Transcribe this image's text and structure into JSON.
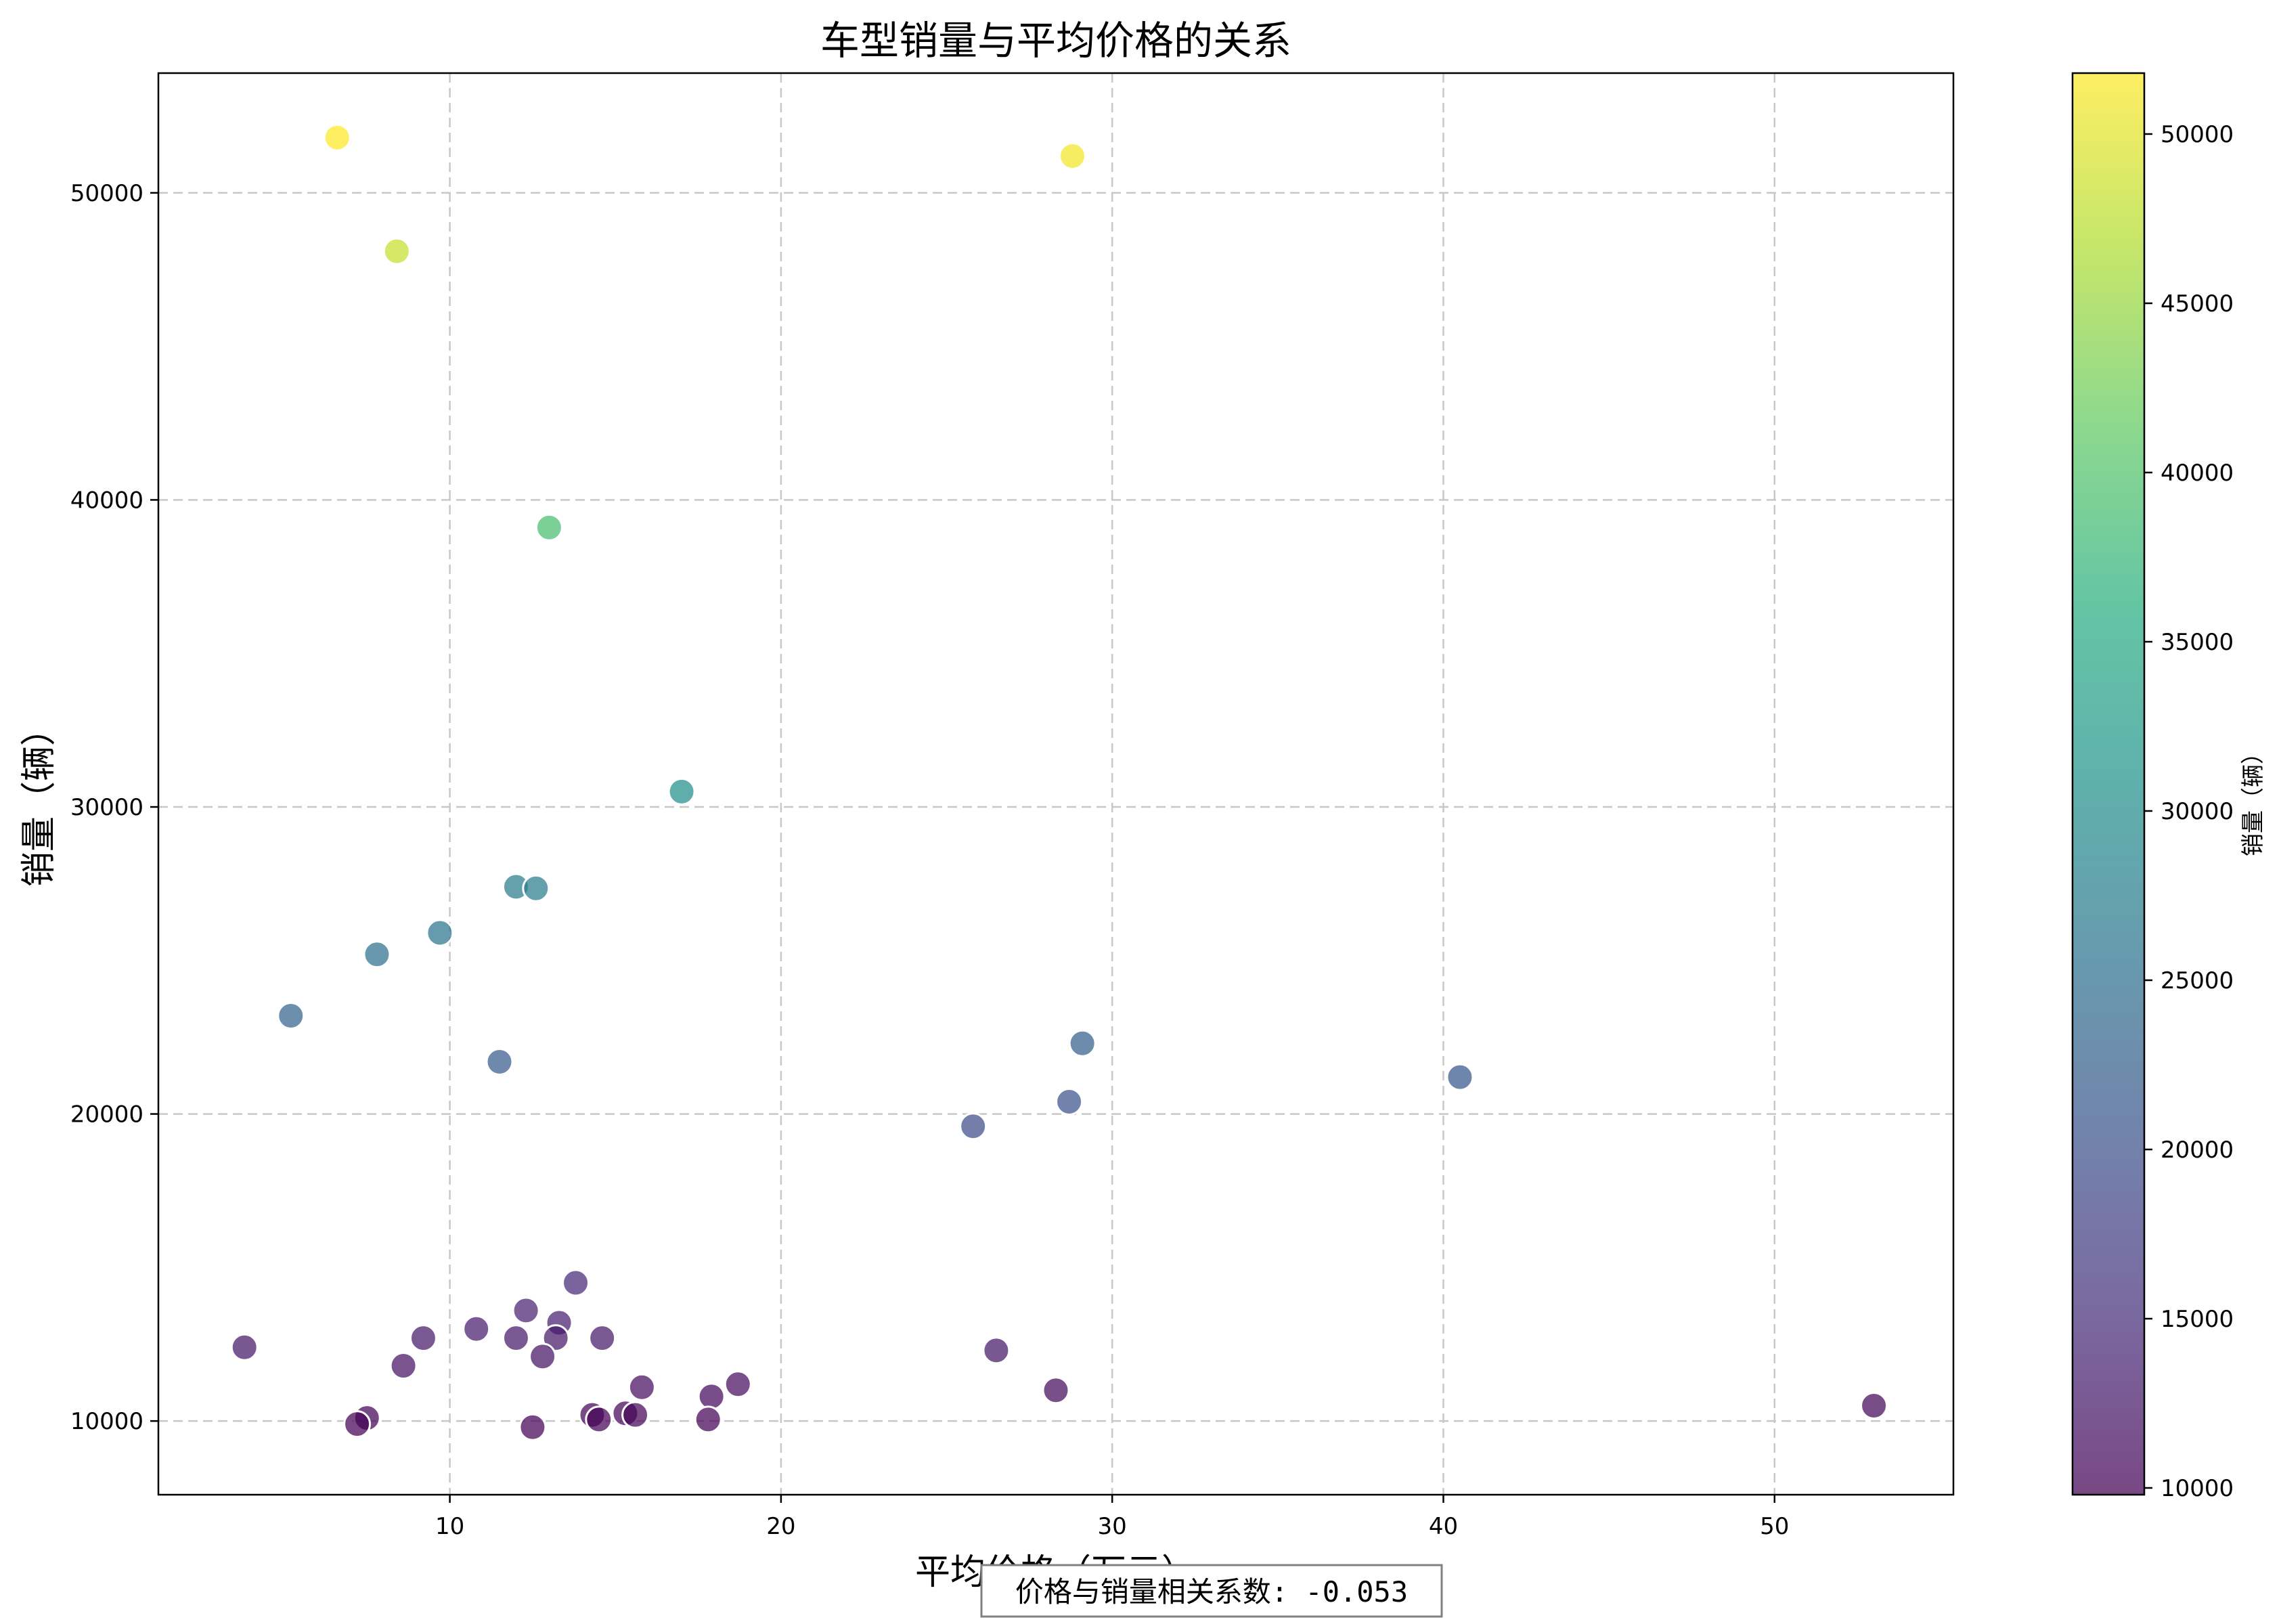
{
  "chart_data": {
    "type": "scatter",
    "title": "车型销量与平均价格的关系",
    "xlabel": "平均价格（万元）",
    "ylabel": "销量（辆）",
    "xlim": [
      1.2,
      55.4
    ],
    "ylim": [
      7600,
      53900
    ],
    "xticks": [
      10,
      20,
      30,
      40,
      50
    ],
    "yticks": [
      10000,
      20000,
      30000,
      40000,
      50000
    ],
    "grid": true,
    "colormap": "viridis",
    "colorbar": {
      "label": "销量（辆）",
      "range": [
        9800,
        51800
      ],
      "ticks": [
        10000,
        15000,
        20000,
        25000,
        30000,
        35000,
        40000,
        45000,
        50000
      ]
    },
    "annotation": "价格与销量相关系数: -0.053",
    "points": [
      {
        "x": 6.6,
        "y": 51800
      },
      {
        "x": 28.8,
        "y": 51200
      },
      {
        "x": 8.4,
        "y": 48100
      },
      {
        "x": 13.0,
        "y": 39100
      },
      {
        "x": 17.0,
        "y": 30500
      },
      {
        "x": 12.0,
        "y": 27400
      },
      {
        "x": 12.6,
        "y": 27350
      },
      {
        "x": 9.7,
        "y": 25900
      },
      {
        "x": 7.8,
        "y": 25200
      },
      {
        "x": 5.2,
        "y": 23200
      },
      {
        "x": 11.5,
        "y": 21700
      },
      {
        "x": 29.1,
        "y": 22300
      },
      {
        "x": 40.5,
        "y": 21200
      },
      {
        "x": 28.7,
        "y": 20400
      },
      {
        "x": 25.8,
        "y": 19600
      },
      {
        "x": 3.8,
        "y": 12400
      },
      {
        "x": 13.8,
        "y": 14500
      },
      {
        "x": 12.3,
        "y": 13600
      },
      {
        "x": 13.3,
        "y": 13200
      },
      {
        "x": 10.8,
        "y": 13000
      },
      {
        "x": 9.2,
        "y": 12700
      },
      {
        "x": 12.0,
        "y": 12700
      },
      {
        "x": 13.2,
        "y": 12700
      },
      {
        "x": 14.6,
        "y": 12700
      },
      {
        "x": 12.8,
        "y": 12100
      },
      {
        "x": 8.6,
        "y": 11800
      },
      {
        "x": 26.5,
        "y": 12300
      },
      {
        "x": 15.8,
        "y": 11100
      },
      {
        "x": 18.7,
        "y": 11200
      },
      {
        "x": 17.9,
        "y": 10800
      },
      {
        "x": 28.3,
        "y": 11000
      },
      {
        "x": 53.0,
        "y": 10500
      },
      {
        "x": 7.5,
        "y": 10100
      },
      {
        "x": 7.2,
        "y": 9900
      },
      {
        "x": 12.5,
        "y": 9800
      },
      {
        "x": 14.3,
        "y": 10200
      },
      {
        "x": 14.5,
        "y": 10050
      },
      {
        "x": 15.3,
        "y": 10250
      },
      {
        "x": 15.6,
        "y": 10200
      },
      {
        "x": 17.8,
        "y": 10050
      }
    ]
  }
}
